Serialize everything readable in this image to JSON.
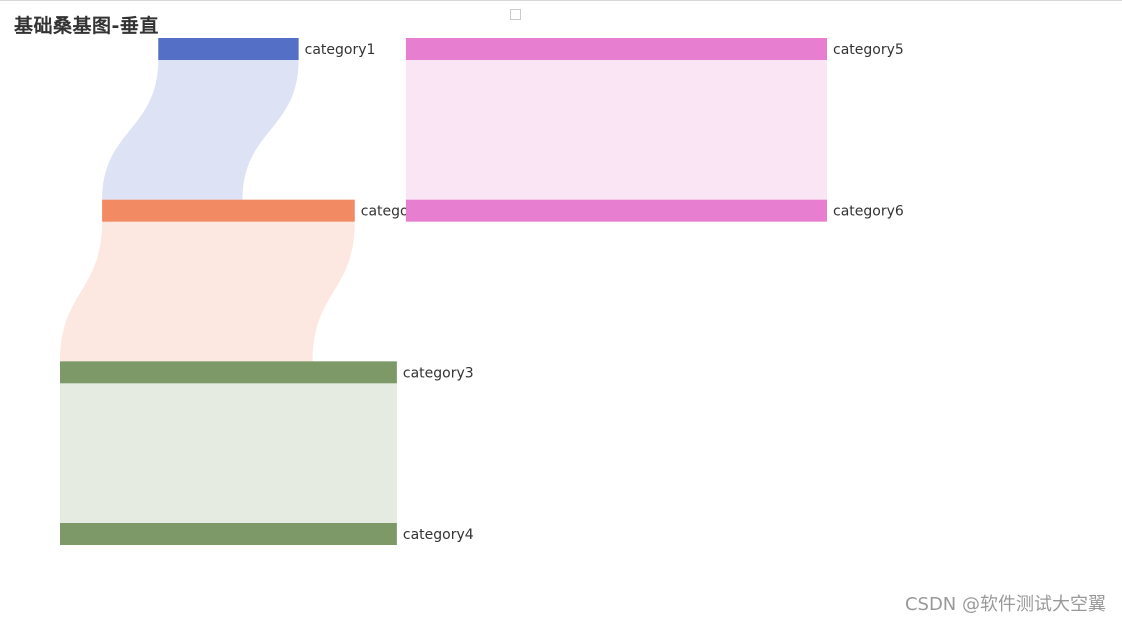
{
  "title": "基础桑基图-垂直",
  "watermark": "CSDN @软件测试大空翼",
  "chart_data": {
    "type": "sankey",
    "orientation": "vertical",
    "nodes": [
      {
        "name": "category1",
        "color": "#5470c6"
      },
      {
        "name": "category2",
        "color": "#f28a63"
      },
      {
        "name": "category3",
        "color": "#7d9967"
      },
      {
        "name": "category4",
        "color": "#7d9967"
      },
      {
        "name": "category5",
        "color": "#e87ecf"
      },
      {
        "name": "category6",
        "color": "#e87ecf"
      }
    ],
    "links": [
      {
        "source": "category1",
        "target": "category2",
        "value": 5
      },
      {
        "source": "category2",
        "target": "category3",
        "value": 9
      },
      {
        "source": "category3",
        "target": "category4",
        "value": 12
      },
      {
        "source": "category5",
        "target": "category6",
        "value": 15
      }
    ]
  }
}
